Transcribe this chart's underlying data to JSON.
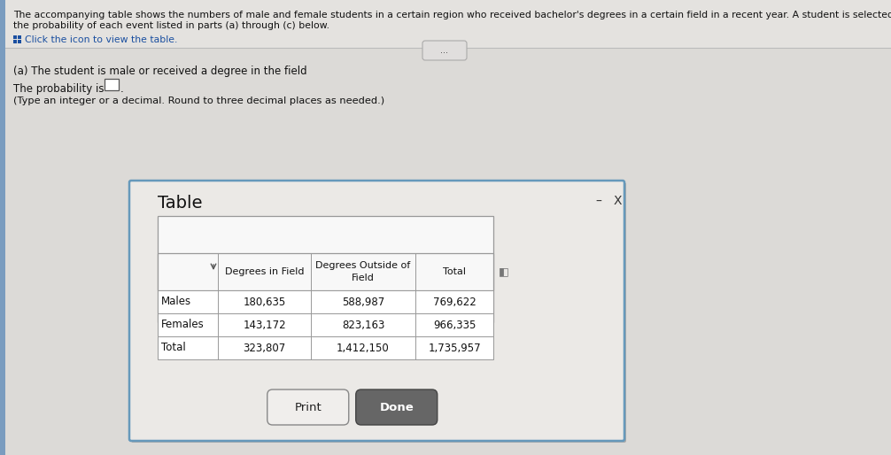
{
  "title_line1": "The accompanying table shows the numbers of male and female students in a certain region who received bachelor's degrees in a certain field in a recent year. A student is selected at random. Find",
  "title_line2": "the probability of each event listed in parts (a) through (c) below.",
  "click_text": "Click the icon to view the table.",
  "part_a_text": "(a) The student is male or received a degree in the field",
  "probability_label": "The probability is",
  "note_text": "(Type an integer or a decimal. Round to three decimal places as needed.)",
  "table_title": "Table",
  "col_headers": [
    "",
    "Degrees in Field",
    "Degrees Outside of\nField",
    "Total"
  ],
  "rows": [
    [
      "Males",
      "180,635",
      "588,987",
      "769,622"
    ],
    [
      "Females",
      "143,172",
      "823,163",
      "966,335"
    ],
    [
      "Total",
      "323,807",
      "1,412,150",
      "1,735,957"
    ]
  ],
  "button_print": "Print",
  "button_done": "Done",
  "page_bg": "#c8c8c8",
  "top_bg": "#e4e2df",
  "content_bg": "#dcdad7",
  "dialog_bg": "#ebe9e6",
  "dialog_border": "#6699bb",
  "table_bg": "#ffffff",
  "table_border": "#999999",
  "text_color": "#111111",
  "blue_text": "#1a4fa0",
  "done_btn_bg": "#666666",
  "done_btn_text": "#ffffff",
  "print_btn_bg": "#f0eeec",
  "print_btn_border": "#888888",
  "separator_color": "#bbbbbb",
  "ellipsis_bg": "#e0dedd",
  "ellipsis_border": "#aaaaaa",
  "left_accent": "#7a9cbf"
}
